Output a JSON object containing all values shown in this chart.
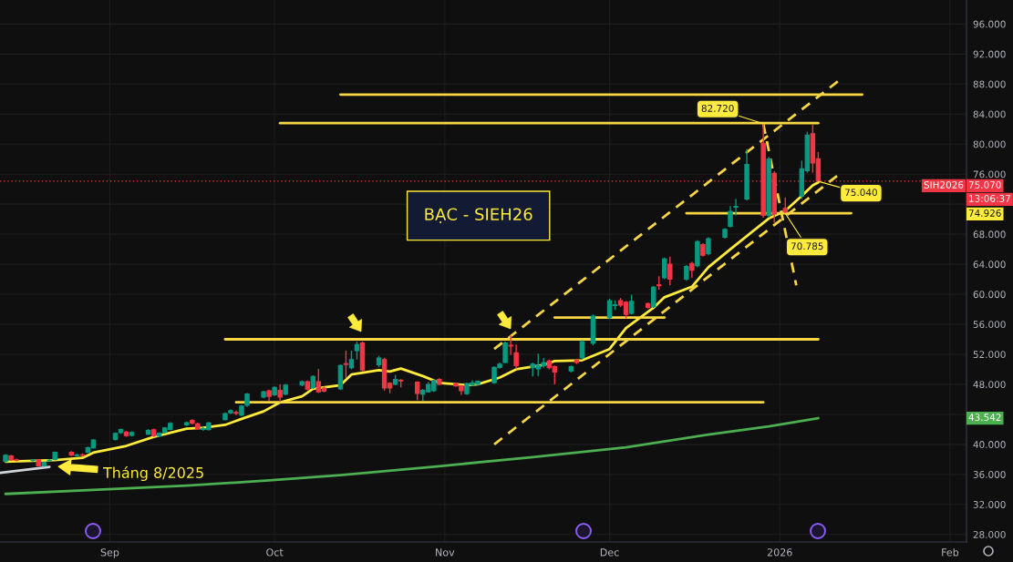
{
  "chart_data": {
    "type": "candlestick",
    "title": "BẠC - SIEH26",
    "x": [
      "2025-08-13",
      "2025-08-14",
      "2025-08-15",
      "2025-08-18",
      "2025-08-19",
      "2025-08-20",
      "2025-08-21",
      "2025-08-22",
      "2025-08-25",
      "2025-08-26",
      "2025-08-27",
      "2025-08-28",
      "2025-08-29",
      "2025-09-02",
      "2025-09-03",
      "2025-09-04",
      "2025-09-05",
      "2025-09-08",
      "2025-09-09",
      "2025-09-10",
      "2025-09-11",
      "2025-09-12",
      "2025-09-15",
      "2025-09-16",
      "2025-09-17",
      "2025-09-18",
      "2025-09-19",
      "2025-09-22",
      "2025-09-23",
      "2025-09-24",
      "2025-09-25",
      "2025-09-26",
      "2025-09-29",
      "2025-09-30",
      "2025-10-01",
      "2025-10-02",
      "2025-10-03",
      "2025-10-06",
      "2025-10-07",
      "2025-10-08",
      "2025-10-09",
      "2025-10-10",
      "2025-10-13",
      "2025-10-14",
      "2025-10-15",
      "2025-10-16",
      "2025-10-17",
      "2025-10-20",
      "2025-10-21",
      "2025-10-22",
      "2025-10-23",
      "2025-10-24",
      "2025-10-27",
      "2025-10-28",
      "2025-10-29",
      "2025-10-30",
      "2025-10-31",
      "2025-11-03",
      "2025-11-04",
      "2025-11-05",
      "2025-11-06",
      "2025-11-07",
      "2025-11-10",
      "2025-11-11",
      "2025-11-12",
      "2025-11-13",
      "2025-11-14",
      "2025-11-17",
      "2025-11-18",
      "2025-11-19",
      "2025-11-20",
      "2025-11-21",
      "2025-11-24",
      "2025-11-25",
      "2025-11-26",
      "2025-11-28",
      "2025-12-01",
      "2025-12-02",
      "2025-12-03",
      "2025-12-04",
      "2025-12-05",
      "2025-12-08",
      "2025-12-09",
      "2025-12-10",
      "2025-12-11",
      "2025-12-12",
      "2025-12-15",
      "2025-12-16",
      "2025-12-17",
      "2025-12-18",
      "2025-12-19",
      "2025-12-22",
      "2025-12-23",
      "2025-12-24",
      "2025-12-26",
      "2025-12-29",
      "2025-12-30",
      "2025-12-31",
      "2026-01-02",
      "2026-01-05",
      "2026-01-06",
      "2026-01-07",
      "2026-01-08"
    ],
    "ohlc": [
      [
        37.75,
        38.7,
        37.6,
        38.55
      ],
      [
        38.45,
        38.6,
        37.8,
        37.95
      ],
      [
        37.95,
        38.1,
        37.75,
        37.9
      ],
      [
        37.85,
        38.05,
        37.7,
        37.9
      ],
      [
        37.95,
        38.0,
        37.05,
        37.15
      ],
      [
        37.15,
        37.7,
        37.0,
        37.6
      ],
      [
        37.85,
        38.0,
        37.7,
        37.9
      ],
      [
        38.0,
        39.05,
        37.9,
        38.95
      ],
      [
        38.95,
        39.1,
        38.45,
        38.55
      ],
      [
        38.5,
        38.75,
        38.35,
        38.6
      ],
      [
        38.6,
        38.8,
        38.4,
        38.55
      ],
      [
        38.95,
        39.7,
        38.85,
        39.55
      ],
      [
        39.55,
        40.7,
        39.45,
        40.57
      ],
      [
        40.65,
        41.6,
        40.5,
        41.45
      ],
      [
        41.58,
        42.1,
        41.4,
        41.98
      ],
      [
        41.66,
        41.8,
        41.0,
        41.17
      ],
      [
        41.2,
        41.75,
        41.05,
        41.6
      ],
      [
        41.37,
        42.05,
        41.25,
        41.86
      ],
      [
        41.94,
        42.1,
        41.0,
        41.13
      ],
      [
        41.1,
        41.6,
        40.95,
        41.5
      ],
      [
        41.6,
        42.3,
        41.45,
        42.2
      ],
      [
        42.0,
        42.95,
        41.9,
        42.8
      ],
      [
        42.6,
        43.05,
        42.45,
        42.9
      ],
      [
        43.2,
        43.35,
        42.65,
        42.8
      ],
      [
        42.75,
        42.9,
        41.95,
        42.06
      ],
      [
        42.0,
        42.3,
        41.8,
        42.1
      ],
      [
        41.97,
        43.0,
        41.85,
        42.87
      ],
      [
        43.3,
        44.25,
        43.2,
        44.1
      ],
      [
        44.2,
        44.65,
        44.05,
        44.5
      ],
      [
        44.25,
        44.5,
        43.9,
        44.15
      ],
      [
        43.9,
        45.25,
        43.75,
        45.1
      ],
      [
        45.2,
        46.85,
        45.0,
        46.7
      ],
      [
        46.3,
        47.15,
        46.15,
        47.0
      ],
      [
        47.15,
        47.3,
        45.8,
        46.4
      ],
      [
        46.6,
        47.75,
        46.45,
        47.6
      ],
      [
        47.2,
        48.0,
        45.7,
        46.3
      ],
      [
        46.7,
        48.05,
        46.55,
        47.9
      ],
      [
        47.9,
        48.5,
        47.75,
        48.35
      ],
      [
        48.35,
        48.5,
        47.2,
        47.35
      ],
      [
        47.55,
        49.2,
        47.4,
        49.05
      ],
      [
        48.35,
        50.06,
        46.85,
        47.0
      ],
      [
        47.5,
        47.7,
        46.95,
        47.1
      ],
      [
        47.4,
        50.65,
        47.25,
        50.5
      ],
      [
        50.75,
        52.5,
        48.85,
        50.65
      ],
      [
        50.2,
        52.5,
        50.0,
        51.3
      ],
      [
        52.5,
        53.7,
        51.3,
        53.3
      ],
      [
        53.5,
        53.7,
        49.7,
        49.9
      ],
      [
        50.6,
        51.8,
        50.3,
        51.5
      ],
      [
        51.3,
        51.55,
        47.15,
        47.5
      ],
      [
        48.15,
        48.3,
        46.8,
        47.5
      ],
      [
        48.0,
        49.25,
        47.9,
        48.65
      ],
      [
        48.55,
        48.7,
        47.6,
        48.45
      ],
      [
        48.3,
        48.4,
        45.9,
        46.8
      ],
      [
        46.7,
        47.4,
        45.8,
        47.2
      ],
      [
        47.0,
        48.3,
        46.9,
        48.0
      ],
      [
        47.15,
        48.6,
        47.0,
        48.5
      ],
      [
        48.65,
        48.8,
        47.9,
        48.0
      ],
      [
        48.1,
        48.2,
        47.7,
        47.8
      ],
      [
        47.8,
        47.9,
        46.6,
        47.15
      ],
      [
        46.75,
        48.2,
        46.6,
        48.1
      ],
      [
        47.9,
        48.55,
        47.8,
        48.2
      ],
      [
        48.0,
        48.5,
        47.9,
        48.4
      ],
      [
        48.2,
        50.4,
        48.1,
        50.25
      ],
      [
        50.25,
        50.9,
        50.1,
        50.7
      ],
      [
        50.9,
        53.7,
        50.8,
        53.5
      ],
      [
        53.2,
        54.5,
        51.9,
        53.1
      ],
      [
        52.2,
        53.3,
        50.06,
        50.5
      ],
      [
        50.25,
        50.9,
        49.05,
        50.7
      ],
      [
        50.06,
        52.1,
        49.1,
        50.5
      ],
      [
        50.5,
        51.5,
        50.2,
        50.9
      ],
      [
        51.1,
        51.3,
        50.0,
        50.2
      ],
      [
        50.35,
        50.5,
        48.0,
        49.65
      ],
      [
        49.8,
        50.5,
        49.6,
        50.35
      ],
      [
        51.2,
        51.4,
        50.7,
        50.9
      ],
      [
        51.55,
        53.9,
        51.3,
        53.7
      ],
      [
        53.5,
        57.3,
        53.2,
        57.1
      ],
      [
        56.9,
        59.4,
        56.7,
        59.15
      ],
      [
        58.5,
        59.2,
        57.9,
        58.6
      ],
      [
        59.15,
        59.5,
        58.3,
        58.55
      ],
      [
        58.95,
        59.1,
        56.8,
        57.3
      ],
      [
        57.45,
        59.95,
        57.3,
        59.05
      ],
      [
        58.75,
        58.9,
        58.1,
        58.25
      ],
      [
        58.35,
        61.1,
        58.2,
        60.95
      ],
      [
        61.25,
        62.4,
        60.6,
        61.15
      ],
      [
        62.2,
        64.9,
        62.0,
        64.7
      ],
      [
        64.0,
        65.0,
        61.2,
        62.0
      ],
      [
        62.0,
        63.9,
        61.8,
        63.7
      ],
      [
        64.1,
        64.3,
        62.2,
        63.2
      ],
      [
        63.8,
        67.2,
        63.6,
        67.0
      ],
      [
        66.6,
        66.8,
        65.0,
        65.2
      ],
      [
        65.4,
        67.6,
        65.2,
        67.4
      ],
      [
        67.6,
        68.8,
        67.4,
        68.65
      ],
      [
        69.05,
        71.75,
        68.9,
        71.05
      ],
      [
        71.6,
        72.7,
        70.5,
        71.7
      ],
      [
        72.7,
        79.35,
        72.5,
        77.3
      ],
      [
        80.1,
        82.72,
        70.2,
        70.5
      ],
      [
        70.5,
        78.3,
        70.2,
        78.0
      ],
      [
        76.1,
        76.4,
        69.5,
        70.7
      ],
      [
        71.45,
        72.9,
        70.785,
        70.95
      ],
      [
        73.1,
        77.8,
        72.7,
        76.7
      ],
      [
        76.45,
        81.65,
        76.2,
        81.2
      ],
      [
        81.4,
        82.6,
        76.2,
        77.5
      ],
      [
        78.06,
        78.95,
        75.04,
        75.07
      ]
    ],
    "colors": [
      "#089981",
      "#f23645",
      "#f23645",
      "#089981",
      "#f23645",
      "#089981",
      "#089981",
      "#089981",
      "#f23645",
      "#089981",
      "#f23645",
      "#089981",
      "#089981",
      "#089981",
      "#089981",
      "#f23645",
      "#089981",
      "#089981",
      "#f23645",
      "#089981",
      "#089981",
      "#089981",
      "#089981",
      "#f23645",
      "#f23645",
      "#089981",
      "#089981",
      "#089981",
      "#089981",
      "#f23645",
      "#089981",
      "#089981",
      "#089981",
      "#f23645",
      "#089981",
      "#f23645",
      "#089981",
      "#089981",
      "#f23645",
      "#089981",
      "#f23645",
      "#f23645",
      "#089981",
      "#f23645",
      "#089981",
      "#089981",
      "#f23645",
      "#089981",
      "#f23645",
      "#f23645",
      "#089981",
      "#f23645",
      "#f23645",
      "#089981",
      "#089981",
      "#089981",
      "#f23645",
      "#f23645",
      "#f23645",
      "#089981",
      "#089981",
      "#089981",
      "#089981",
      "#089981",
      "#089981",
      "#f23645",
      "#f23645",
      "#089981",
      "#089981",
      "#089981",
      "#f23645",
      "#f23645",
      "#089981",
      "#f23645",
      "#089981",
      "#089981",
      "#089981",
      "#089981",
      "#f23645",
      "#f23645",
      "#089981",
      "#f23645",
      "#089981",
      "#f23645",
      "#089981",
      "#f23645",
      "#089981",
      "#f23645",
      "#089981",
      "#f23645",
      "#089981",
      "#089981",
      "#089981",
      "#089981",
      "#089981",
      "#f23645",
      "#089981",
      "#f23645",
      "#f23645",
      "#089981",
      "#089981",
      "#f23645",
      "#f23645"
    ],
    "series": [
      {
        "type": "line",
        "color": "#ffeb3b",
        "x": [
          "2025-08-13",
          "2025-08-22",
          "2025-08-27",
          "2025-08-29",
          "2025-09-04",
          "2025-09-09",
          "2025-09-15",
          "2025-09-18",
          "2025-09-22",
          "2025-09-25",
          "2025-09-29",
          "2025-10-02",
          "2025-10-06",
          "2025-10-08",
          "2025-10-13",
          "2025-10-15",
          "2025-10-20",
          "2025-10-22",
          "2025-10-24",
          "2025-10-28",
          "2025-10-31",
          "2025-11-05",
          "2025-11-07",
          "2025-11-11",
          "2025-11-14",
          "2025-11-19",
          "2025-11-21",
          "2025-11-26",
          "2025-12-01",
          "2025-12-04",
          "2025-12-09",
          "2025-12-11",
          "2025-12-16",
          "2025-12-19",
          "2025-12-23",
          "2025-12-30",
          "2026-01-02",
          "2026-01-05",
          "2026-01-07",
          "2026-01-08"
        ],
        "values": [
          37.7,
          37.9,
          38.2,
          38.9,
          39.8,
          41.0,
          42.1,
          42.2,
          42.6,
          43.4,
          44.4,
          45.6,
          46.4,
          47.4,
          47.9,
          49.3,
          49.9,
          49.7,
          50.1,
          49.1,
          48.2,
          47.9,
          48.0,
          48.9,
          50.0,
          50.6,
          51.1,
          51.2,
          52.7,
          55.5,
          58.2,
          59.6,
          61.0,
          63.6,
          66.0,
          70.1,
          71.1,
          73.1,
          74.5,
          74.9
        ]
      },
      {
        "type": "line",
        "color": "#4caf50",
        "x": [
          "2025-08-13",
          "2025-08-28",
          "2025-09-15",
          "2025-09-30",
          "2025-10-13",
          "2025-10-31",
          "2025-11-17",
          "2025-12-04",
          "2025-12-19",
          "2025-12-30",
          "2026-01-08"
        ],
        "values": [
          33.4,
          33.9,
          34.5,
          35.2,
          35.9,
          37.1,
          38.3,
          39.6,
          41.3,
          42.4,
          43.5
        ]
      },
      {
        "type": "line",
        "color": "#f6d743",
        "line_style": "dashed",
        "x": [
          "2025-11-10",
          "2026-01-12"
        ],
        "values": [
          52.7,
          88.6
        ]
      },
      {
        "type": "line",
        "color": "#f6d743",
        "line_style": "dashed",
        "x": [
          "2025-11-10",
          "2026-01-12"
        ],
        "values": [
          40.0,
          76.1
        ]
      },
      {
        "type": "line",
        "color": "#f6d743",
        "line_style": "dashed",
        "x": [
          "2025-12-29",
          "2026-01-04"
        ],
        "values": [
          82.7,
          61.2
        ]
      },
      {
        "type": "line",
        "color": "#f6d743",
        "x": [
          "2025-10-13",
          "2026-01-16"
        ],
        "values": [
          86.6,
          86.6
        ]
      },
      {
        "type": "line",
        "color": "#f6d743",
        "x": [
          "2025-10-02",
          "2026-01-08"
        ],
        "values": [
          82.8,
          82.8
        ]
      },
      {
        "type": "line",
        "color": "#f6d743",
        "x": [
          "2025-09-22",
          "2026-01-08"
        ],
        "values": [
          54.0,
          54.0
        ]
      },
      {
        "type": "line",
        "color": "#f6d743",
        "x": [
          "2025-12-15",
          "2026-01-14"
        ],
        "values": [
          70.8,
          70.8
        ]
      },
      {
        "type": "line",
        "color": "#f6d743",
        "x": [
          "2025-09-24",
          "2025-12-29"
        ],
        "values": [
          45.6,
          45.6
        ]
      },
      {
        "type": "line",
        "color": "#f6d743",
        "x": [
          "2025-11-21",
          "2025-12-11"
        ],
        "values": [
          56.9,
          56.9
        ]
      },
      {
        "type": "line",
        "color": "#d1d4dc",
        "x": [
          "2025-08-12",
          "2025-08-21"
        ],
        "values": [
          36.2,
          37.0
        ]
      }
    ],
    "xlim": [
      "2025-08-12",
      "2026-02-04"
    ],
    "ylim": [
      27.0,
      99.2
    ],
    "xticks": [
      {
        "value": "2025-09-01",
        "label": "Sep"
      },
      {
        "value": "2025-10-01",
        "label": "Oct"
      },
      {
        "value": "2025-11-01",
        "label": "Nov"
      },
      {
        "value": "2025-12-01",
        "label": "Dec"
      },
      {
        "value": "2026-01-01",
        "label": "2026"
      },
      {
        "value": "2026-02-01",
        "label": "Feb"
      }
    ],
    "yticks": [
      {
        "value": 28,
        "label": "28.000"
      },
      {
        "value": 32,
        "label": "32.000"
      },
      {
        "value": 36,
        "label": "36.000"
      },
      {
        "value": 40,
        "label": "40.000"
      },
      {
        "value": 44,
        "label": null
      },
      {
        "value": 48,
        "label": "48.000"
      },
      {
        "value": 52,
        "label": "52.000"
      },
      {
        "value": 56,
        "label": "56.000"
      },
      {
        "value": 60,
        "label": "60.000"
      },
      {
        "value": 64,
        "label": "64.000"
      },
      {
        "value": 68,
        "label": "68.000"
      },
      {
        "value": 72,
        "label": null
      },
      {
        "value": 76,
        "label": "76.000"
      },
      {
        "value": 80,
        "label": "80.000"
      },
      {
        "value": 84,
        "label": "84.000"
      },
      {
        "value": 88,
        "label": "88.000"
      },
      {
        "value": 92,
        "label": "92.000"
      },
      {
        "value": 96,
        "label": "96.000"
      }
    ],
    "grid": true,
    "ref_lines": [
      {
        "axis": "y",
        "value": 75.07,
        "label": "75.070",
        "color": "#f23645",
        "line_style": "dotted"
      }
    ],
    "annotations": [
      "SIH2026",
      "13:06:37",
      "Tháng 8/2025",
      "74.926",
      "43.542",
      {
        "text": "82.720",
        "x": "2025-12-29",
        "y": 82.72
      },
      {
        "text": "75.040",
        "x": "2026-01-08",
        "y": 75.04
      },
      {
        "text": "70.785",
        "x": "2026-01-02",
        "y": 70.785
      }
    ]
  }
}
